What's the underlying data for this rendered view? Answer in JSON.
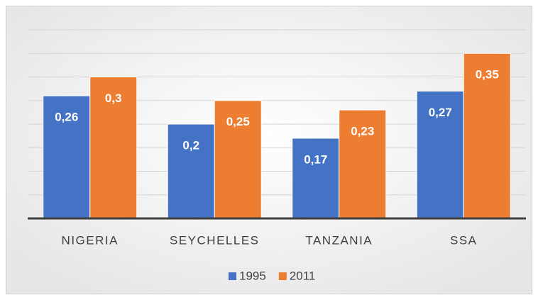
{
  "chart_data": {
    "type": "bar",
    "categories": [
      "NIGERIA",
      "SEYCHELLES",
      "TANZANIA",
      "SSA"
    ],
    "series": [
      {
        "name": "1995",
        "color": "#4472c4",
        "values": [
          0.26,
          0.2,
          0.17,
          0.27
        ],
        "value_labels": [
          "0,26",
          "0,2",
          "0,17",
          "0,27"
        ]
      },
      {
        "name": "2011",
        "color": "#ed7d31",
        "values": [
          0.3,
          0.25,
          0.23,
          0.35
        ],
        "value_labels": [
          "0,3",
          "0,25",
          "0,23",
          "0,35"
        ]
      }
    ],
    "ylim": [
      0,
      0.4
    ],
    "yticks": [
      0,
      0.05,
      0.1,
      0.15,
      0.2,
      0.25,
      0.3,
      0.35,
      0.4
    ],
    "grid": true,
    "legend": "bottom"
  }
}
